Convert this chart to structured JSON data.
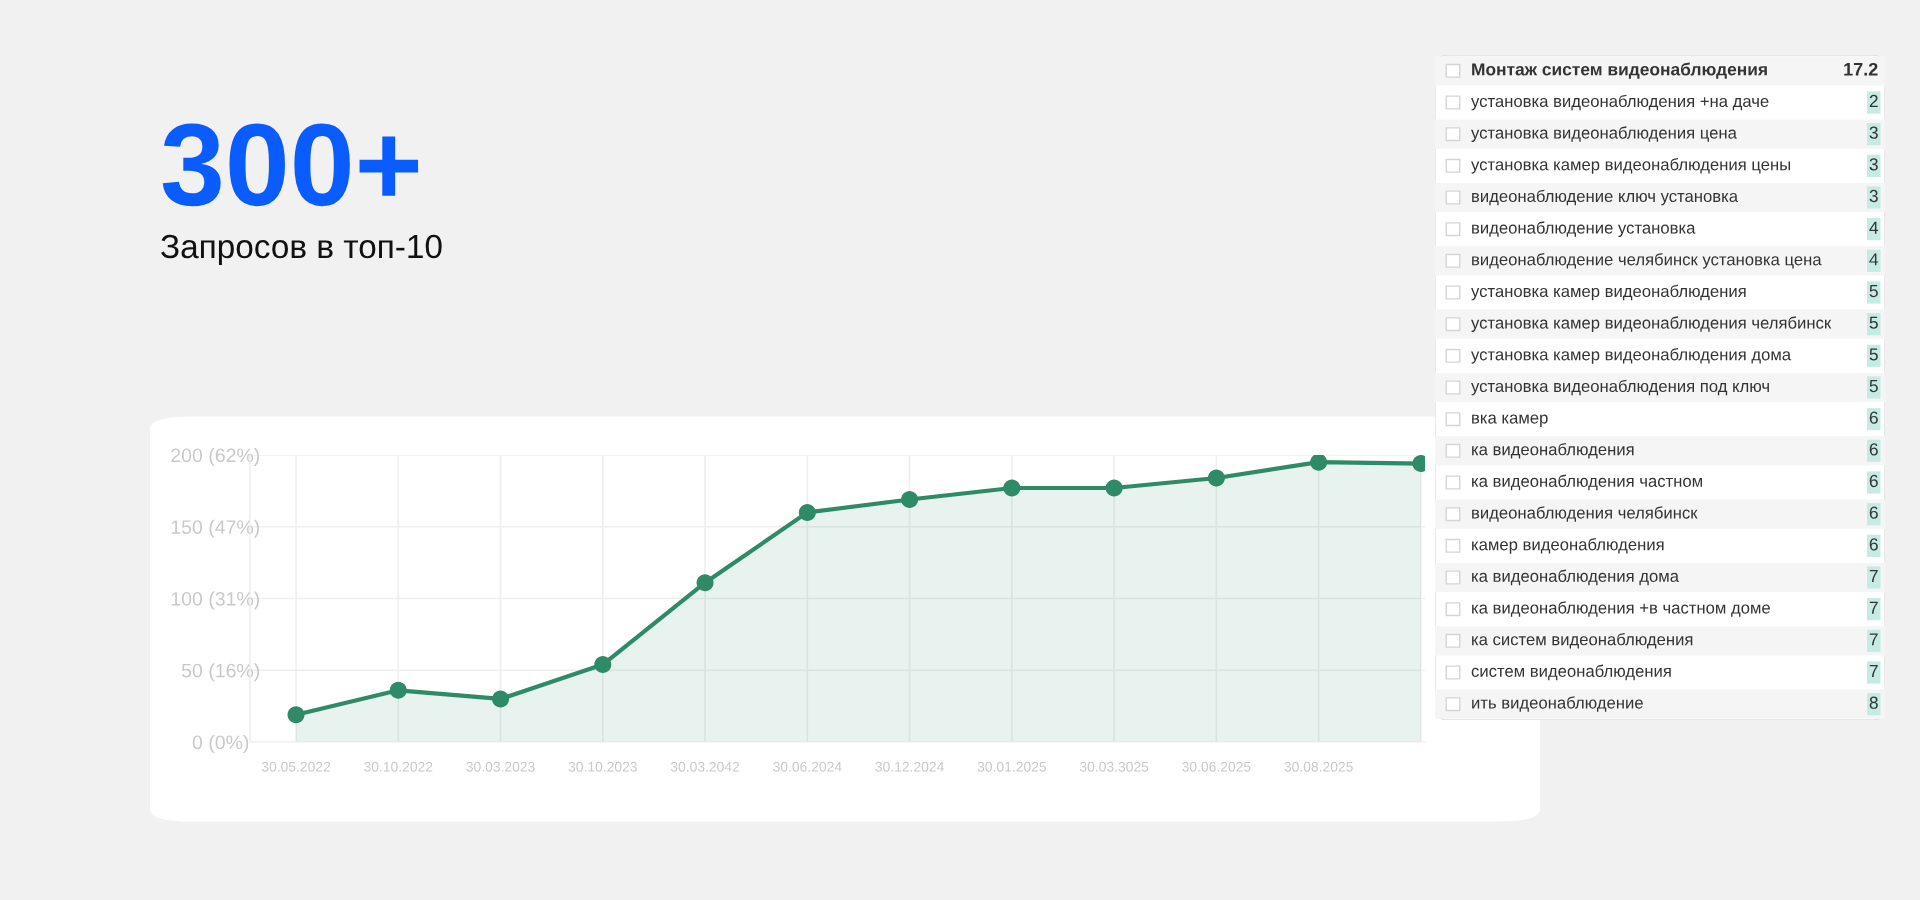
{
  "chart_data": [
    {
      "type": "area",
      "title": "300+",
      "subtitle": "Запросов в топ-10",
      "categories": [
        "30.05.2022",
        "30.10.2022",
        "30.03.2023",
        "30.10.2023",
        "30.03.2042",
        "30.06.2024",
        "30.12.2024",
        "30.01.2025",
        "30.03.3025",
        "30.06.2025",
        "30.08.2025",
        null
      ],
      "series": [
        {
          "color": "#2f8a68",
          "values": [
            19,
            36,
            30,
            54,
            111,
            160,
            169,
            177,
            177,
            184,
            195,
            194
          ]
        }
      ],
      "ylim": [
        0,
        200
      ],
      "yticks": [
        0,
        50,
        100,
        150,
        200
      ],
      "y2lim": [
        0,
        62
      ],
      "y2ticks": [
        {
          "value": 0,
          "label": "(0%)"
        },
        {
          "value": 15.5,
          "label": "(16%)"
        },
        {
          "value": 31,
          "label": "(31%)"
        },
        {
          "value": 46.5,
          "label": "(47%)"
        },
        {
          "value": 62,
          "label": "(62%)"
        }
      ],
      "grid": true,
      "marker": "circle",
      "line_style": "solid"
    },
    {
      "type": "other",
      "title": "Монтаж систем видеонаблюдения",
      "annotations": [
        "17.2"
      ],
      "categories": [
        "установка видеонаблюдения +на даче",
        "установка видеонаблюдения цена",
        "установка камер видеонаблюдения цены",
        "видеонаблюдение ключ установка",
        "видеонаблюдение установка",
        "видеонаблюдение челябинск установка цена",
        "установка камер видеонаблюдения",
        "установка камер видеонаблюдения челябинск",
        "установка камер видеонаблюдения дома",
        "установка видеонаблюдения под ключ",
        "вка камер",
        "ка видеонаблюдения",
        "ка видеонаблюдения частном",
        "видеонаблюдения челябинск",
        "камер видеонаблюдения",
        "ка видеонаблюдения дома",
        "ка видеонаблюдения +в частном доме",
        "ка систем видеонаблюдения",
        "систем видеонаблюдения",
        "ить видеонаблюдение"
      ],
      "values": [
        2,
        3,
        3,
        3,
        4,
        4,
        5,
        5,
        5,
        5,
        6,
        6,
        6,
        6,
        6,
        7,
        7,
        7,
        7,
        8
      ],
      "data_labels": true
    }
  ]
}
